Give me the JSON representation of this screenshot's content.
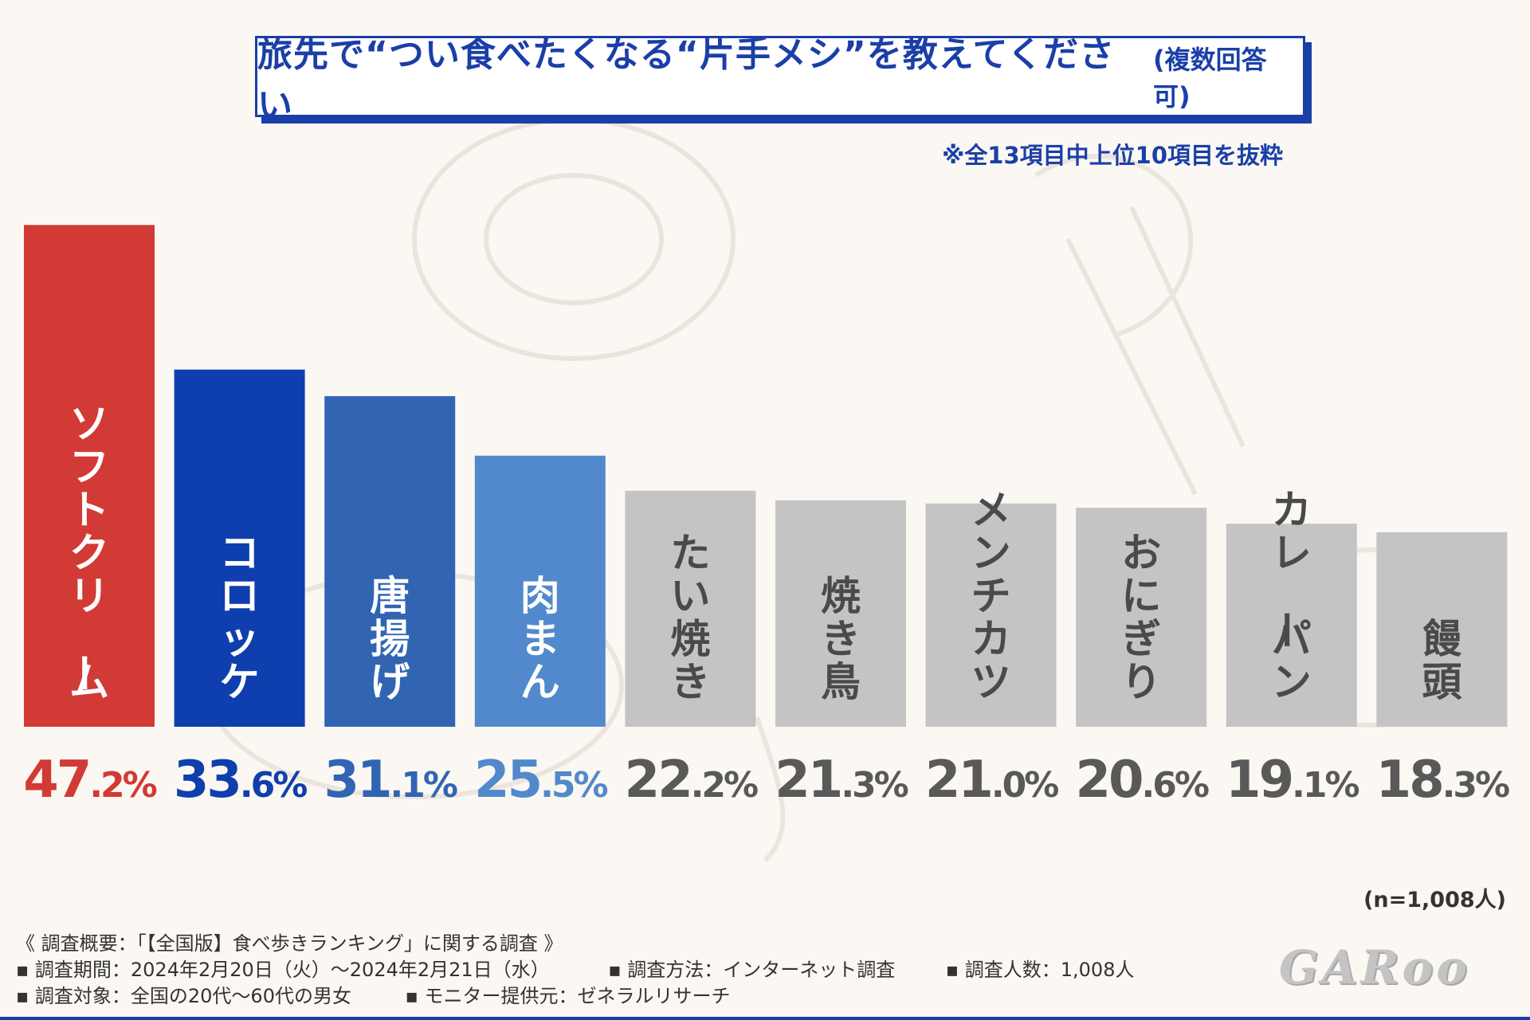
{
  "title": {
    "main": "旅先で“つい食べたくなる“片手メシ”を教えてください",
    "sub": "(複数回答可)"
  },
  "note": "※全13項目中上位10項目を抜粋",
  "chart_data": {
    "type": "bar",
    "categories": [
      "ソフトクリーム",
      "コロッケ",
      "唐揚げ",
      "肉まん",
      "たい焼き",
      "焼き鳥",
      "メンチカツ",
      "おにぎり",
      "カレーパン",
      "饅頭"
    ],
    "values": [
      47.2,
      33.6,
      31.1,
      25.5,
      22.2,
      21.3,
      21.0,
      20.6,
      19.1,
      18.3
    ],
    "value_labels": [
      "47.2%",
      "33.6%",
      "31.1%",
      "25.5%",
      "22.2%",
      "21.3%",
      "21.0%",
      "20.6%",
      "19.1%",
      "18.3%"
    ],
    "bar_colors": [
      "#d23a35",
      "#0f3fae",
      "#3165b3",
      "#5189cc",
      "#c4c4c4",
      "#c4c4c4",
      "#c4c4c4",
      "#c4c4c4",
      "#c4c4c4",
      "#c4c4c4"
    ],
    "label_colors": [
      "#d23a35",
      "#0f3fae",
      "#3165b3",
      "#5189cc",
      "#595959",
      "#595959",
      "#595959",
      "#595959",
      "#595959",
      "#595959"
    ],
    "unit": "%",
    "ylim": [
      0,
      50
    ],
    "grid": false,
    "axes_visible": false
  },
  "sample_size": "(n=1,008人)",
  "survey": {
    "heading": "《 調査概要：「【全国版】食べ歩きランキング」に関する調査 》",
    "period": "▪ 調査期間：2024年2月20日（火）～2024年2月21日（水）",
    "method": "▪ 調査方法：インターネット調査",
    "respondents": "▪ 調査人数：1,008人",
    "target": "▪ 調査対象：全国の20代～60代の男女",
    "provider": "▪ モニター提供元：ゼネラルリサーチ"
  },
  "logo_text": "GARoo"
}
